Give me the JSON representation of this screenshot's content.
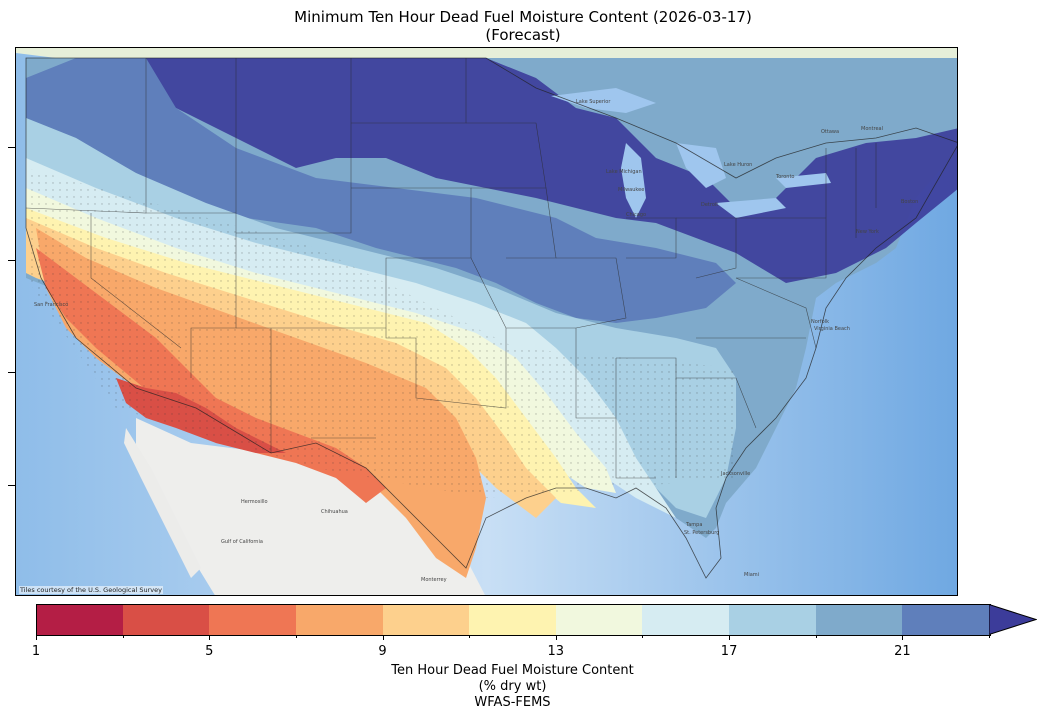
{
  "title_line1": "Minimum Ten Hour Dead Fuel Moisture Content (2026-03-17)",
  "title_line2": "(Forecast)",
  "map": {
    "credit": "Tiles courtesy of the U.S. Geological Survey",
    "place_labels": [
      "San Francisco",
      "Hermosillo",
      "Chihuahua",
      "Monterrey",
      "Gulf of California",
      "Lake Superior",
      "Lake Huron",
      "Lake Michigan",
      "Milwaukee",
      "Chicago",
      "Detroit",
      "Toronto",
      "Ottawa",
      "Montreal",
      "Boston",
      "New York",
      "Norfolk",
      "Virginia Beach",
      "Jacksonville",
      "Tampa",
      "St. Petersburg",
      "Miami"
    ]
  },
  "colorbar": {
    "label_line1": "Ten Hour Dead Fuel Moisture Content",
    "label_line2": "(% dry wt)",
    "label_line3": "WFAS-FEMS",
    "ticks": [
      "1",
      "5",
      "9",
      "13",
      "17",
      "21"
    ],
    "colors": [
      "#b41e45",
      "#d94f46",
      "#ef7654",
      "#f8a86a",
      "#fdd08d",
      "#fef3b0",
      "#f1f8de",
      "#d6ecf2",
      "#a9d0e4",
      "#7faacb",
      "#5f7fbb",
      "#3c3c9a"
    ],
    "extend": "max"
  }
}
